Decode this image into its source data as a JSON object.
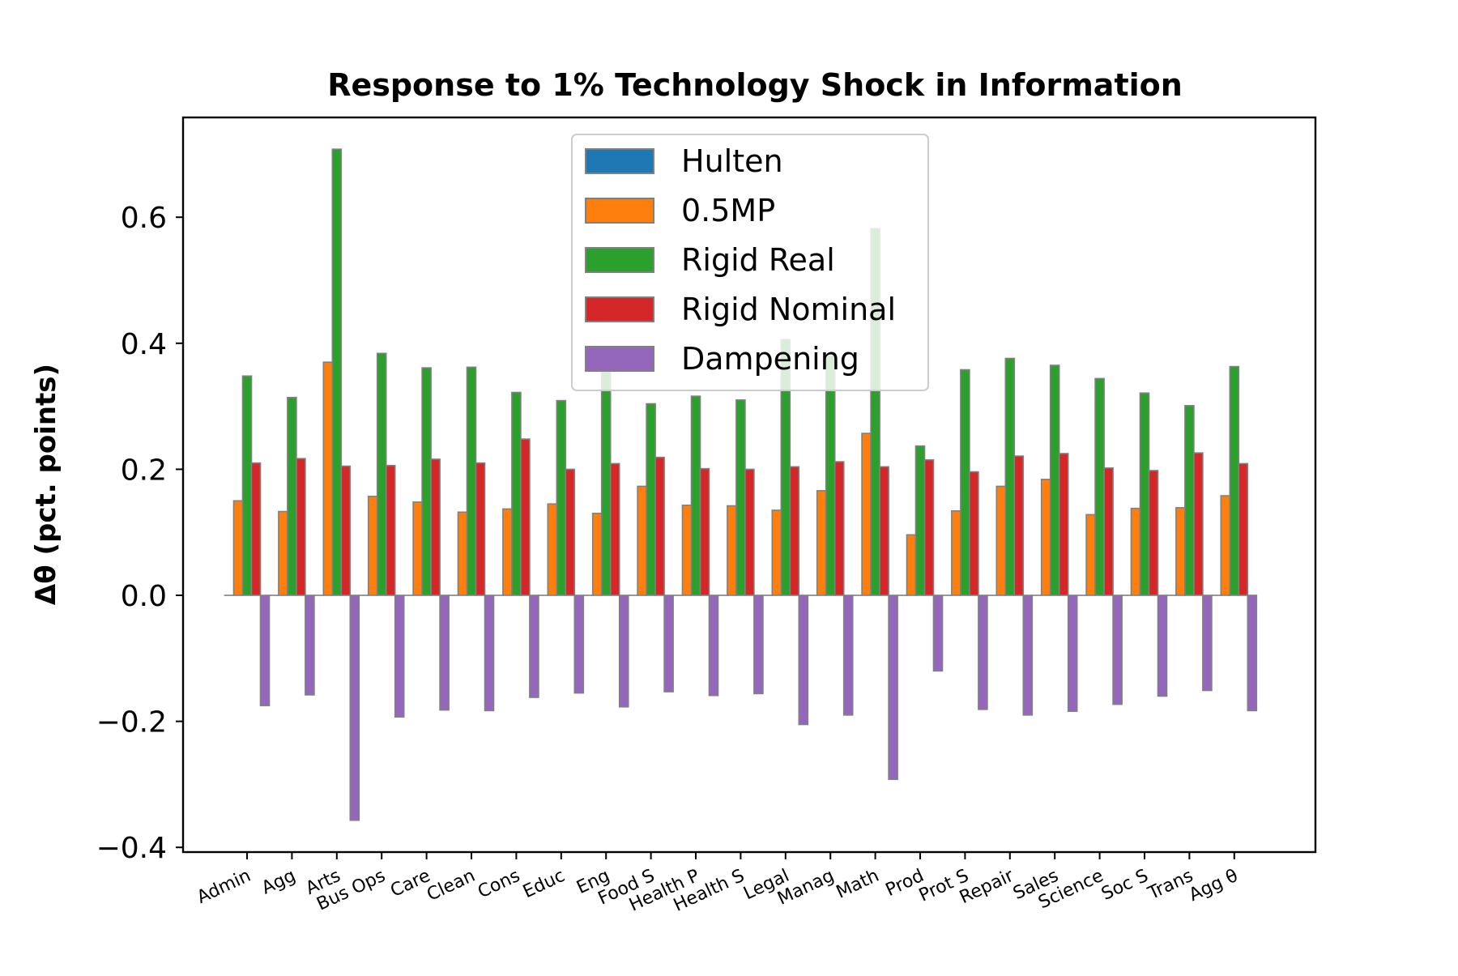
{
  "chart_data": {
    "type": "bar",
    "title": "Response to 1% Technology Shock in Information",
    "xlabel": "",
    "ylabel": "Δθ  (pct. points)",
    "ylim": [
      -0.4,
      0.72
    ],
    "yticks": [
      -0.4,
      -0.2,
      0.0,
      0.2,
      0.4,
      0.6
    ],
    "ytick_labels": [
      "−0.4",
      "−0.2",
      "0.0",
      "0.2",
      "0.4",
      "0.6"
    ],
    "grid": false,
    "legend_position": "top-center",
    "categories": [
      "Admin",
      "Agg",
      "Arts",
      "Bus Ops",
      "Care",
      "Clean",
      "Cons",
      "Educ",
      "Eng",
      "Food S",
      "Health P",
      "Health S",
      "Legal",
      "Manag",
      "Math",
      "Prod",
      "Prot S",
      "Repair",
      "Sales",
      "Science",
      "Soc S",
      "Trans",
      "Agg θ"
    ],
    "series": [
      {
        "name": "Hulten",
        "color": "#1f77b4",
        "values": [
          0,
          0,
          0,
          0,
          0,
          0,
          0,
          0,
          0,
          0,
          0,
          0,
          0,
          0,
          0,
          0,
          0,
          0,
          0,
          0,
          0,
          0,
          0
        ]
      },
      {
        "name": "0.5MP",
        "color": "#ff7f0e",
        "values": [
          0.15,
          0.133,
          0.37,
          0.157,
          0.148,
          0.132,
          0.137,
          0.145,
          0.13,
          0.173,
          0.143,
          0.142,
          0.135,
          0.166,
          0.257,
          0.096,
          0.134,
          0.173,
          0.184,
          0.128,
          0.138,
          0.139,
          0.158
        ]
      },
      {
        "name": "Rigid Real",
        "color": "#2ca02c",
        "values": [
          0.348,
          0.314,
          0.708,
          0.384,
          0.361,
          0.362,
          0.322,
          0.309,
          0.355,
          0.304,
          0.316,
          0.31,
          0.406,
          0.38,
          0.582,
          0.237,
          0.358,
          0.376,
          0.365,
          0.344,
          0.321,
          0.301,
          0.363
        ]
      },
      {
        "name": "Rigid Nominal",
        "color": "#d62728",
        "values": [
          0.21,
          0.217,
          0.205,
          0.206,
          0.216,
          0.21,
          0.248,
          0.2,
          0.209,
          0.219,
          0.201,
          0.2,
          0.204,
          0.212,
          0.204,
          0.215,
          0.196,
          0.221,
          0.225,
          0.202,
          0.198,
          0.226,
          0.209
        ]
      },
      {
        "name": "Dampening",
        "color": "#9467bd",
        "values": [
          -0.175,
          -0.158,
          -0.357,
          -0.193,
          -0.182,
          -0.183,
          -0.162,
          -0.155,
          -0.177,
          -0.153,
          -0.159,
          -0.156,
          -0.205,
          -0.19,
          -0.292,
          -0.12,
          -0.181,
          -0.19,
          -0.184,
          -0.173,
          -0.16,
          -0.151,
          -0.183
        ]
      }
    ]
  }
}
